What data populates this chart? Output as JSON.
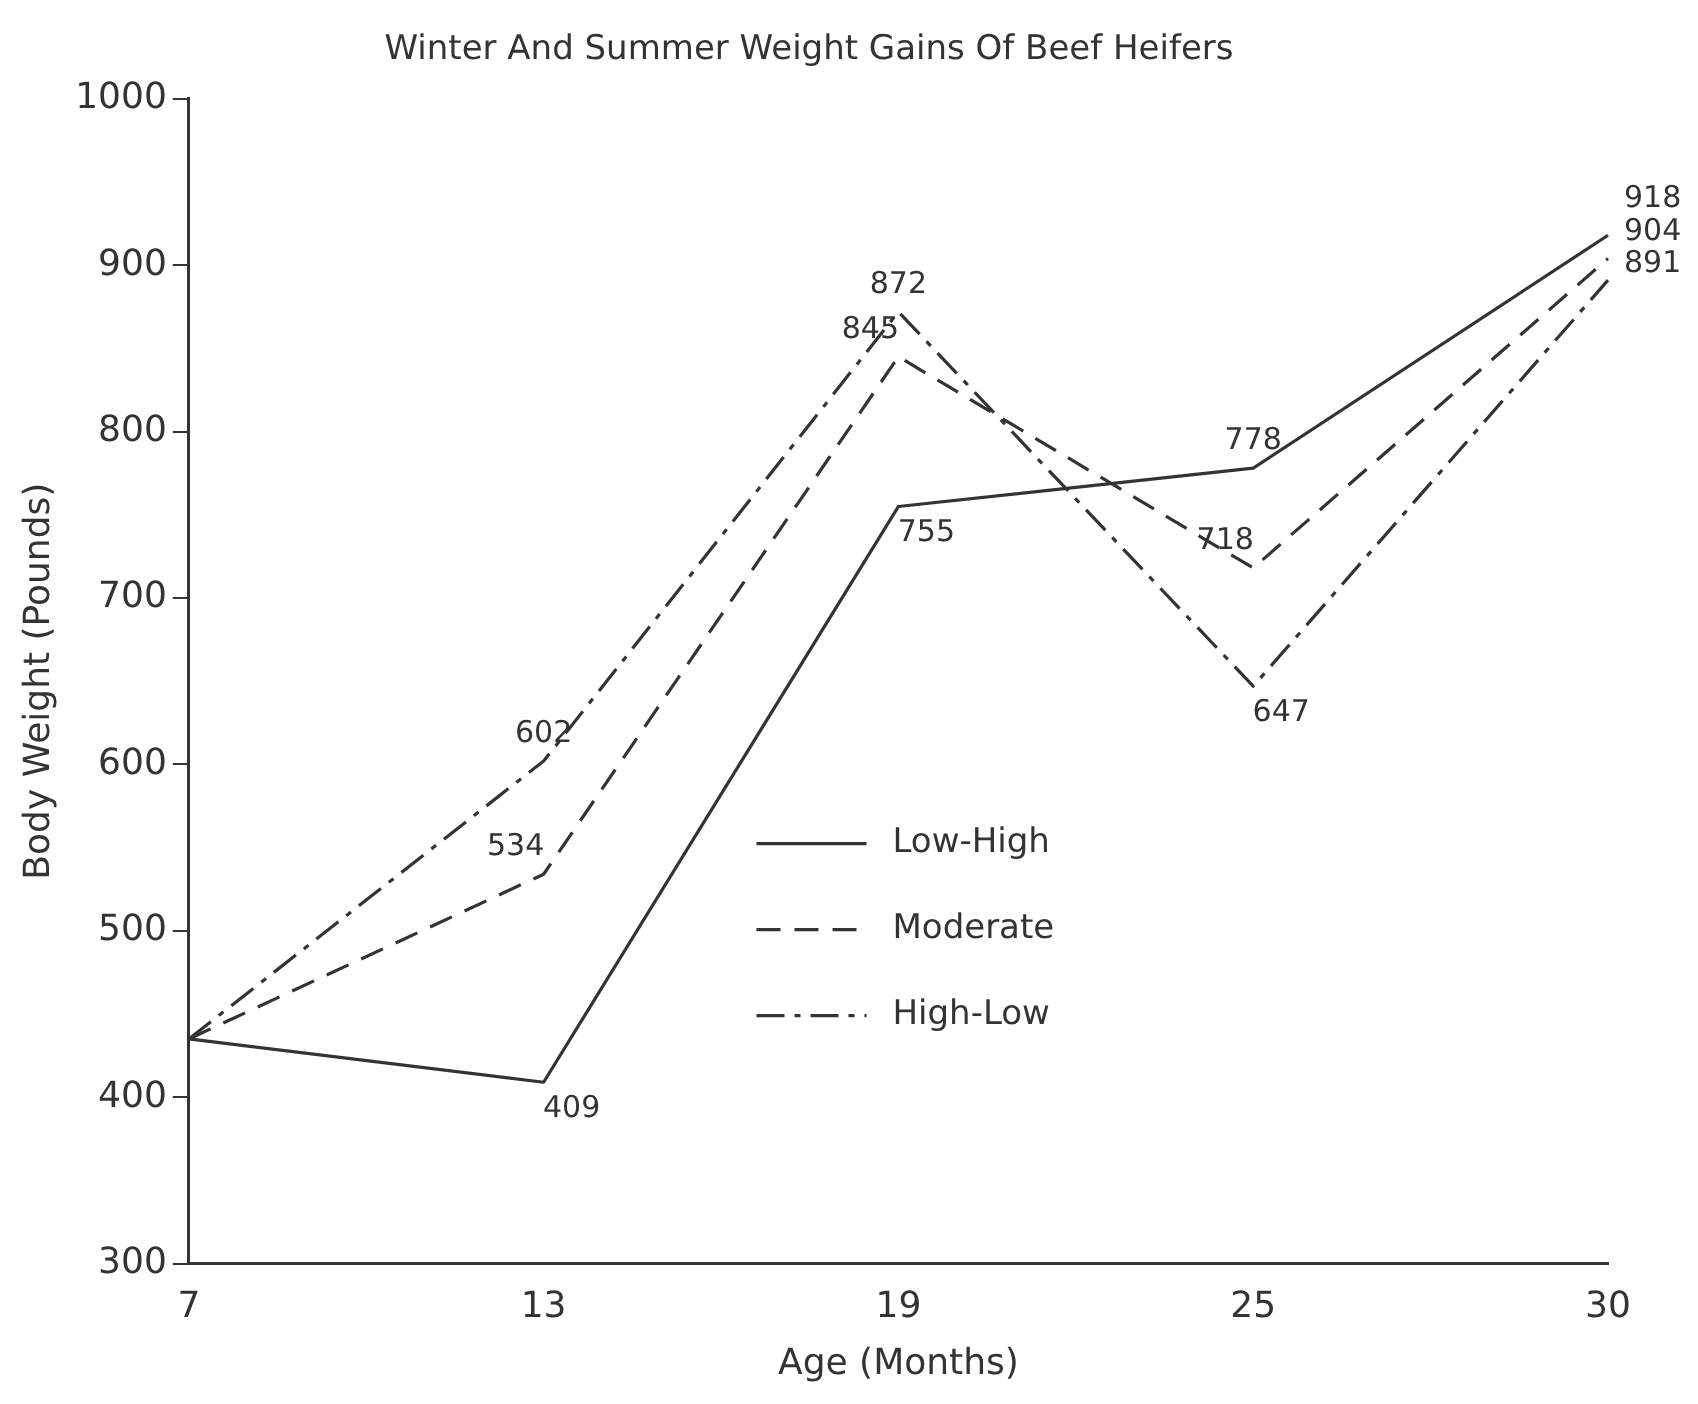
{
  "chart_data": {
    "type": "line",
    "title": "Winter And Summer Weight Gains Of Beef Heifers",
    "xlabel": "Age (Months)",
    "ylabel": "Body Weight (Pounds)",
    "categories": [
      "7",
      "13",
      "19",
      "25",
      "30"
    ],
    "series": [
      {
        "name": "Low-High",
        "color": "#333333",
        "line_style": "solid",
        "values": [
          435,
          409,
          755,
          778,
          918
        ],
        "value_labels": [
          null,
          "409",
          "755",
          "778",
          "918"
        ]
      },
      {
        "name": "Moderate",
        "color": "#333333",
        "line_style": "dashed",
        "values": [
          435,
          534,
          845,
          718,
          904
        ],
        "value_labels": [
          null,
          "534",
          "845",
          "718",
          "904"
        ]
      },
      {
        "name": "High-Low",
        "color": "#333333",
        "line_style": "dashdot",
        "values": [
          435,
          602,
          872,
          647,
          891
        ],
        "value_labels": [
          null,
          "602",
          "872",
          "647",
          "891"
        ]
      }
    ],
    "ylim": [
      300,
      1000
    ],
    "yticks": [
      300,
      400,
      500,
      600,
      700,
      800,
      900,
      1000
    ],
    "grid": false,
    "legend": "bottom",
    "marker": "none"
  }
}
